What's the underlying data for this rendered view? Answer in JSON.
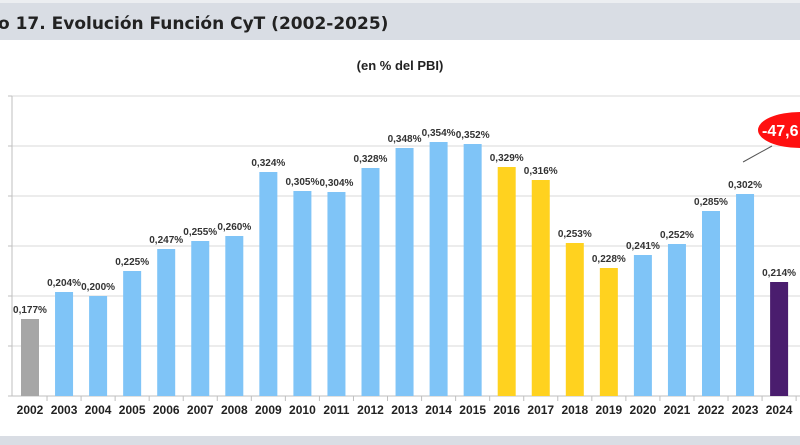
{
  "header": {
    "title": "o 17. Evolución Función CyT (2002-2025)"
  },
  "chart_data": {
    "type": "bar",
    "title": "o 17. Evolución Función CyT (2002-2025)",
    "subtitle": "(en % del PBI)",
    "categories": [
      "2002",
      "2003",
      "2004",
      "2005",
      "2006",
      "2007",
      "2008",
      "2009",
      "2010",
      "2011",
      "2012",
      "2013",
      "2014",
      "2015",
      "2016",
      "2017",
      "2018",
      "2019",
      "2020",
      "2021",
      "2022",
      "2023",
      "2024"
    ],
    "values": [
      0.177,
      0.204,
      0.2,
      0.225,
      0.247,
      0.255,
      0.26,
      0.324,
      0.305,
      0.304,
      0.328,
      0.348,
      0.354,
      0.352,
      0.329,
      0.316,
      0.253,
      0.228,
      0.241,
      0.252,
      0.285,
      0.302,
      0.214
    ],
    "labels": [
      "0,177%",
      "0,204%",
      "0,200%",
      "0,225%",
      "0,247%",
      "0,255%",
      "0,260%",
      "0,324%",
      "0,305%",
      "0,304%",
      "0,328%",
      "0,348%",
      "0,354%",
      "0,352%",
      "0,329%",
      "0,316%",
      "0,253%",
      "0,228%",
      "0,241%",
      "0,252%",
      "0,285%",
      "0,302%",
      "0,214%"
    ],
    "bar_colors": [
      "#a6a6a6",
      "#7fc4f7",
      "#7fc4f7",
      "#7fc4f7",
      "#7fc4f7",
      "#7fc4f7",
      "#7fc4f7",
      "#7fc4f7",
      "#7fc4f7",
      "#7fc4f7",
      "#7fc4f7",
      "#7fc4f7",
      "#7fc4f7",
      "#7fc4f7",
      "#ffd21f",
      "#ffd21f",
      "#ffd21f",
      "#ffd21f",
      "#7fc4f7",
      "#7fc4f7",
      "#7fc4f7",
      "#7fc4f7",
      "#4a1d6e"
    ],
    "ylim": [
      0.1,
      0.4
    ],
    "ytick_step": 0.05,
    "grid": true,
    "annotation": {
      "text": "-47,6",
      "color": "#ff1010"
    }
  }
}
